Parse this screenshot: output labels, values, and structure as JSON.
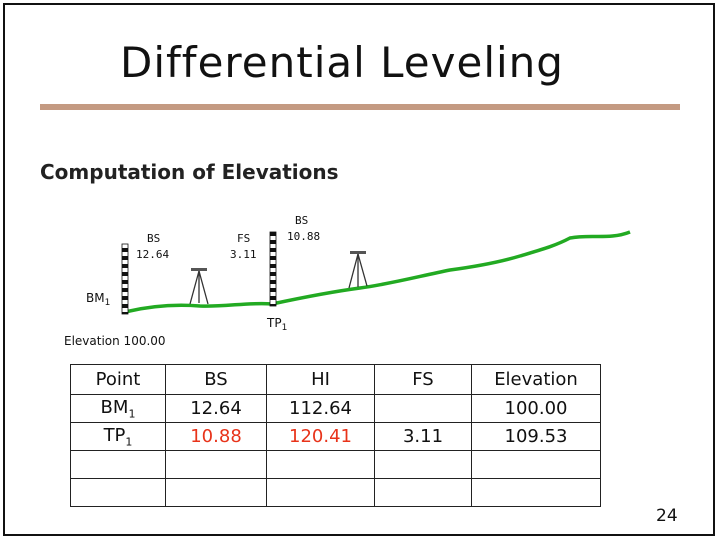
{
  "slide": {
    "title": "Differential Leveling",
    "subtitle": "Computation of Elevations",
    "page_number": "24"
  },
  "diagram": {
    "bs1_label": "BS",
    "bs1_value": "12.64",
    "fs1_label": "FS",
    "fs1_value": "3.11",
    "bs2_label": "BS",
    "bs2_value": "10.88",
    "bm_label": "BM",
    "bm_sub": "1",
    "tp_label": "TP",
    "tp_sub": "1",
    "elevation_label": "Elevation 100.00",
    "ground_color": "#22aa22"
  },
  "table": {
    "headers": [
      "Point",
      "BS",
      "HI",
      "FS",
      "Elevation"
    ],
    "rows": [
      {
        "point": "BM",
        "point_sub": "1",
        "bs": "12.64",
        "hi": "112.64",
        "fs": "",
        "elevation": "100.00"
      },
      {
        "point": "TP",
        "point_sub": "1",
        "bs": "10.88",
        "hi": "120.41",
        "fs": "3.11",
        "elevation": "109.53"
      },
      {
        "point": "",
        "point_sub": "",
        "bs": "",
        "hi": "",
        "fs": "",
        "elevation": ""
      },
      {
        "point": "",
        "point_sub": "",
        "bs": "",
        "hi": "",
        "fs": "",
        "elevation": ""
      }
    ],
    "highlight_color": "#e8331a"
  }
}
